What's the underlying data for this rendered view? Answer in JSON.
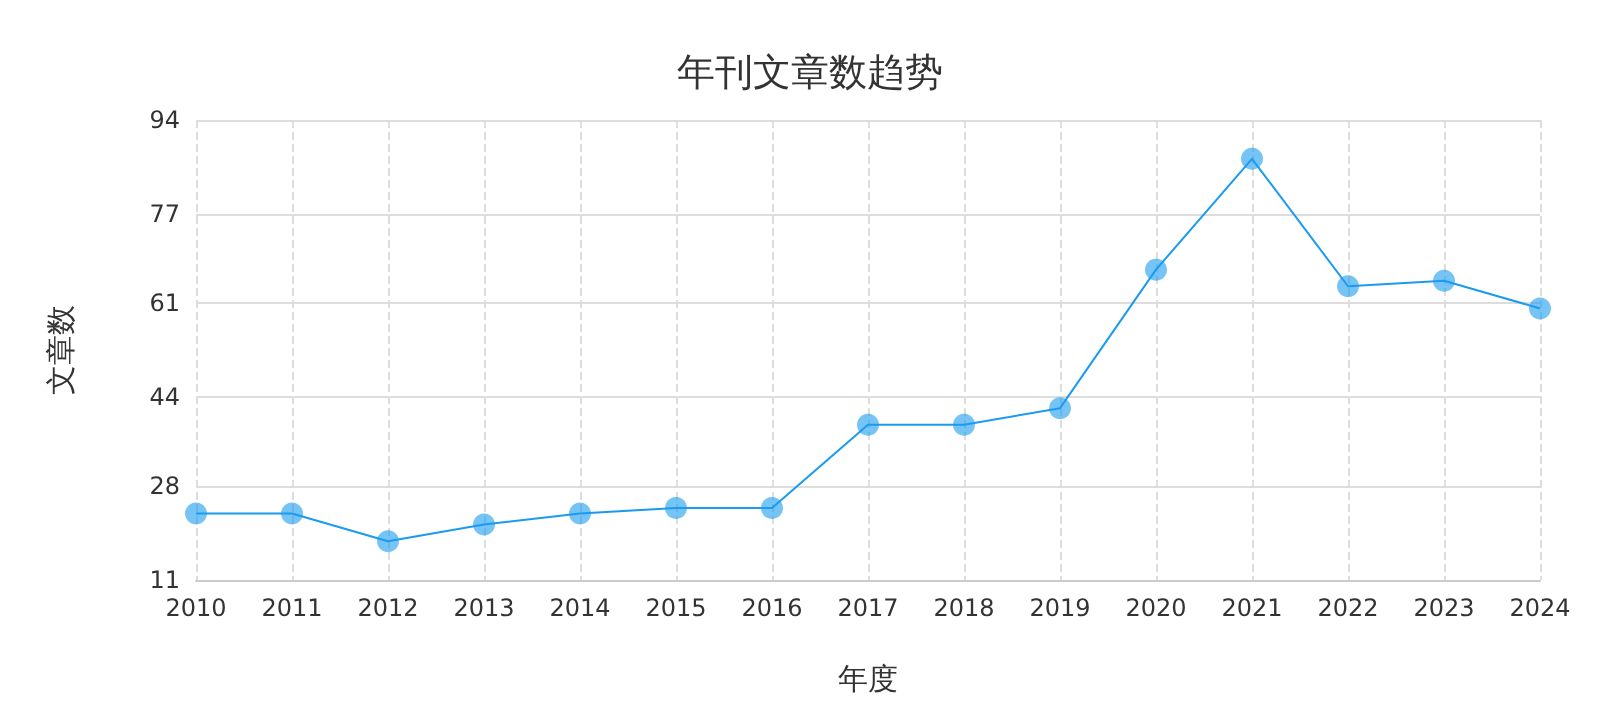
{
  "chart_data": {
    "type": "line",
    "title": "年刊文章数趋势",
    "xlabel": "年度",
    "ylabel": "文章数",
    "categories": [
      "2010",
      "2011",
      "2012",
      "2013",
      "2014",
      "2015",
      "2016",
      "2017",
      "2018",
      "2019",
      "2020",
      "2021",
      "2022",
      "2023",
      "2024"
    ],
    "series": [
      {
        "color": "#1a9bf0",
        "values": [
          23,
          23,
          18,
          21,
          23,
          24,
          24,
          39,
          39,
          42,
          67,
          87,
          64,
          65,
          60
        ]
      }
    ],
    "ylim": [
      11,
      94
    ],
    "yticks": [
      11,
      28,
      44,
      61,
      77,
      94
    ],
    "grid": true,
    "marker": "circle",
    "line_style": "solid"
  }
}
